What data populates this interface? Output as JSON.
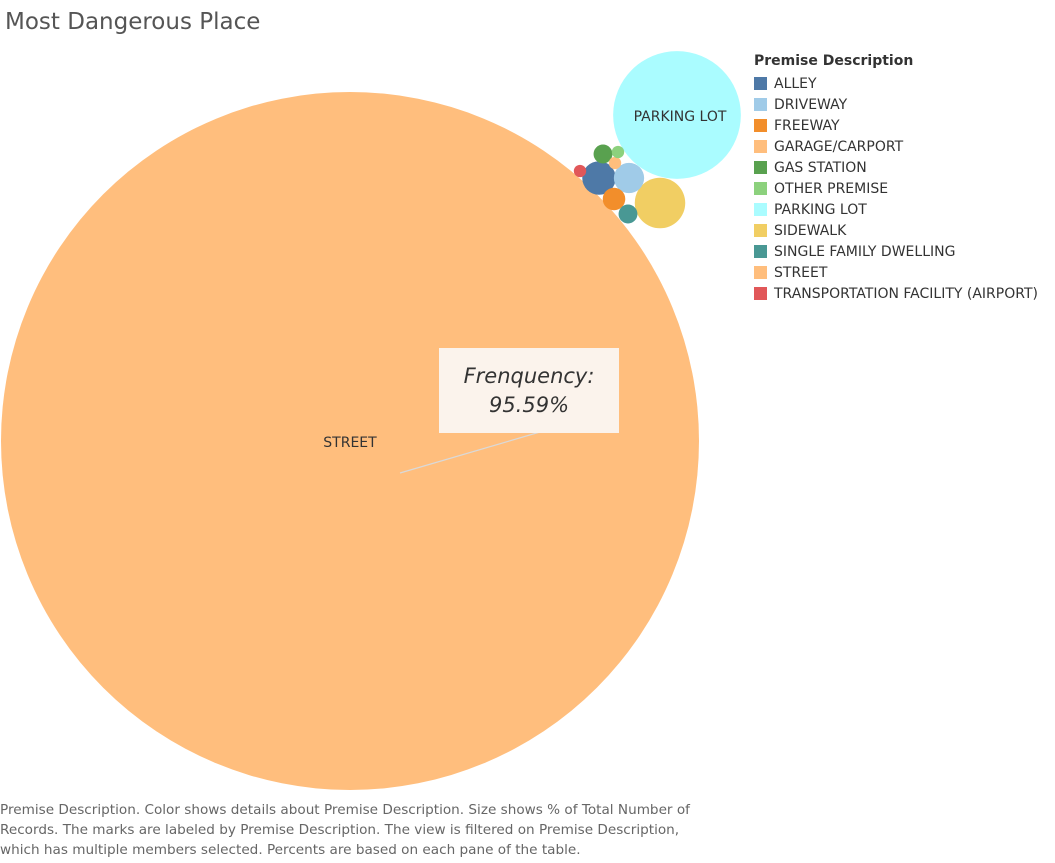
{
  "title": "Most Dangerous Place",
  "legend": {
    "title": "Premise Description"
  },
  "tooltip": {
    "label": "Frenquency:",
    "value": "95.59%"
  },
  "caption": {
    "lines": [
      "Premise Description.  Color shows details about Premise Description.  Size shows % of Total Number of",
      "Records.  The marks are labeled by Premise Description. The view is filtered on Premise Description,",
      "which has multiple members selected. Percents are based on each pane of the table."
    ]
  },
  "chart_data": {
    "type": "bubble",
    "title": "Most Dangerous Place",
    "size_measure": "% of Total Number of Records",
    "color_field": "Premise Description",
    "legend_position": "right",
    "series": [
      {
        "name": "ALLEY",
        "color": "#4e79a7",
        "value": 0.22,
        "label_shown": false
      },
      {
        "name": "DRIVEWAY",
        "color": "#a0cbe8",
        "value": 0.18,
        "label_shown": false
      },
      {
        "name": "FREEWAY",
        "color": "#f28e2b",
        "value": 0.1,
        "label_shown": false
      },
      {
        "name": "GARAGE/CARPORT",
        "color": "#ffbe7d",
        "value": 0.03,
        "label_shown": false
      },
      {
        "name": "GAS STATION",
        "color": "#59a14f",
        "value": 0.07,
        "label_shown": false
      },
      {
        "name": "OTHER PREMISE",
        "color": "#8cd17d",
        "value": 0.03,
        "label_shown": false
      },
      {
        "name": "PARKING LOT",
        "color": "#aafcff",
        "value": 3.2,
        "label_shown": true
      },
      {
        "name": "SIDEWALK",
        "color": "#f1ce63",
        "value": 0.5,
        "label_shown": false
      },
      {
        "name": "SINGLE FAMILY DWELLING",
        "color": "#499894",
        "value": 0.07,
        "label_shown": false
      },
      {
        "name": "STREET",
        "color": "#ffbe7d",
        "value": 95.59,
        "label_shown": true
      },
      {
        "name": "TRANSPORTATION FACILITY (AIRPORT)",
        "color": "#e15759",
        "value": 0.03,
        "label_shown": false
      }
    ]
  }
}
